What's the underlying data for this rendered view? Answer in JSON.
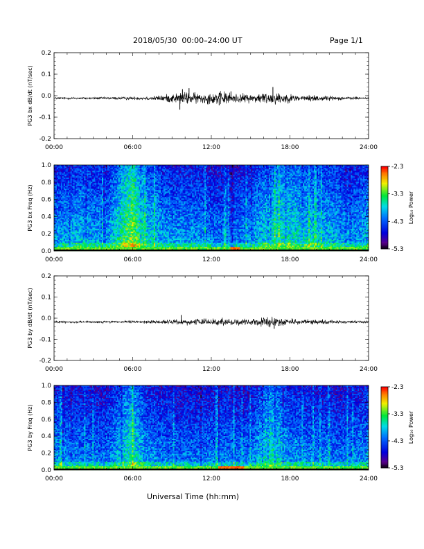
{
  "header": {
    "title": "2018/05/30  00:00–24:00 UT",
    "page": "Page 1/1"
  },
  "xlabel": "Universal Time (hh:mm)",
  "chart_data": [
    {
      "type": "line",
      "ylabel": "PG3 bx dB/dt (nT/sec)",
      "xlim": [
        0,
        24
      ],
      "ylim": [
        -0.2,
        0.2
      ],
      "xticks": [
        "00:00",
        "06:00",
        "12:00",
        "18:00",
        "24:00"
      ],
      "yticks": [
        "-0.2",
        "-0.1",
        "0.0",
        "0.1",
        "0.2"
      ],
      "baseline": -0.012,
      "activity": [
        {
          "hour": 0,
          "amplitude": 0.004
        },
        {
          "hour": 3,
          "amplitude": 0.004
        },
        {
          "hour": 5,
          "amplitude": 0.005
        },
        {
          "hour": 7,
          "amplitude": 0.006
        },
        {
          "hour": 8,
          "amplitude": 0.009
        },
        {
          "hour": 9,
          "amplitude": 0.016
        },
        {
          "hour": 10,
          "amplitude": 0.022
        },
        {
          "hour": 11,
          "amplitude": 0.018
        },
        {
          "hour": 12,
          "amplitude": 0.02
        },
        {
          "hour": 13,
          "amplitude": 0.024
        },
        {
          "hour": 14,
          "amplitude": 0.016
        },
        {
          "hour": 15,
          "amplitude": 0.015
        },
        {
          "hour": 16,
          "amplitude": 0.02
        },
        {
          "hour": 17,
          "amplitude": 0.022
        },
        {
          "hour": 18,
          "amplitude": 0.014
        },
        {
          "hour": 19,
          "amplitude": 0.01
        },
        {
          "hour": 20,
          "amplitude": 0.012
        },
        {
          "hour": 21,
          "amplitude": 0.008
        },
        {
          "hour": 22,
          "amplitude": 0.006
        },
        {
          "hour": 23,
          "amplitude": 0.005
        },
        {
          "hour": 24,
          "amplitude": 0.004
        }
      ],
      "spikes": [
        {
          "hour": 9.6,
          "value": -0.065
        },
        {
          "hour": 9.8,
          "value": 0.03
        },
        {
          "hour": 10.3,
          "value": 0.035
        },
        {
          "hour": 12.6,
          "value": -0.045
        },
        {
          "hour": 16.7,
          "value": 0.04
        },
        {
          "hour": 13.5,
          "value": 0.02
        }
      ]
    },
    {
      "type": "heatmap",
      "ylabel": "PG3 bx Freq (Hz)",
      "xlim": [
        0,
        24
      ],
      "ylim": [
        0,
        1
      ],
      "xticks": [
        "00:00",
        "06:00",
        "12:00",
        "18:00",
        "24:00"
      ],
      "yticks": [
        "0.0",
        "0.2",
        "0.4",
        "0.6",
        "0.8",
        "1.0"
      ],
      "colorbar": {
        "label": "Log₁₀ Power",
        "ticks": [
          "-2.3",
          "-3.3",
          "-4.3",
          "-5.3"
        ],
        "range": [
          -5.3,
          -2.3
        ]
      },
      "activity_hours": [
        {
          "hour": 0,
          "level": 0.45
        },
        {
          "hour": 2,
          "level": 0.5
        },
        {
          "hour": 4,
          "level": 0.45
        },
        {
          "hour": 6,
          "level": 0.75
        },
        {
          "hour": 7,
          "level": 0.55
        },
        {
          "hour": 9,
          "level": 0.45
        },
        {
          "hour": 11,
          "level": 0.45
        },
        {
          "hour": 13,
          "level": 0.4
        },
        {
          "hour": 15,
          "level": 0.45
        },
        {
          "hour": 17,
          "level": 0.6
        },
        {
          "hour": 19,
          "level": 0.55
        },
        {
          "hour": 21,
          "level": 0.5
        },
        {
          "hour": 23,
          "level": 0.45
        },
        {
          "hour": 24,
          "level": 0.5
        }
      ],
      "low_freq_peak_hours": [
        13.5,
        14.2
      ]
    },
    {
      "type": "line",
      "ylabel": "PG3 by dB/dt (nT/sec)",
      "xlim": [
        0,
        24
      ],
      "ylim": [
        -0.2,
        0.2
      ],
      "xticks": [
        "00:00",
        "06:00",
        "12:00",
        "18:00",
        "24:00"
      ],
      "yticks": [
        "-0.2",
        "-0.1",
        "0.0",
        "0.1",
        "0.2"
      ],
      "baseline": -0.018,
      "activity": [
        {
          "hour": 0,
          "amplitude": 0.004
        },
        {
          "hour": 3,
          "amplitude": 0.004
        },
        {
          "hour": 5,
          "amplitude": 0.004
        },
        {
          "hour": 7,
          "amplitude": 0.005
        },
        {
          "hour": 8,
          "amplitude": 0.006
        },
        {
          "hour": 9,
          "amplitude": 0.008
        },
        {
          "hour": 10,
          "amplitude": 0.011
        },
        {
          "hour": 11,
          "amplitude": 0.01
        },
        {
          "hour": 12,
          "amplitude": 0.011
        },
        {
          "hour": 13,
          "amplitude": 0.012
        },
        {
          "hour": 14,
          "amplitude": 0.012
        },
        {
          "hour": 15,
          "amplitude": 0.013
        },
        {
          "hour": 16,
          "amplitude": 0.016
        },
        {
          "hour": 17,
          "amplitude": 0.016
        },
        {
          "hour": 18,
          "amplitude": 0.012
        },
        {
          "hour": 19,
          "amplitude": 0.009
        },
        {
          "hour": 20,
          "amplitude": 0.008
        },
        {
          "hour": 21,
          "amplitude": 0.007
        },
        {
          "hour": 22,
          "amplitude": 0.005
        },
        {
          "hour": 23,
          "amplitude": 0.005
        },
        {
          "hour": 24,
          "amplitude": 0.004
        }
      ],
      "spikes": [
        {
          "hour": 9.7,
          "value": 0.015
        },
        {
          "hour": 16.8,
          "value": -0.05
        },
        {
          "hour": 16.4,
          "value": -0.04
        }
      ]
    },
    {
      "type": "heatmap",
      "ylabel": "PG3 by Freq (Hz)",
      "xlim": [
        0,
        24
      ],
      "ylim": [
        0,
        1
      ],
      "xticks": [
        "00:00",
        "06:00",
        "12:00",
        "18:00",
        "24:00"
      ],
      "yticks": [
        "0.0",
        "0.2",
        "0.4",
        "0.6",
        "0.8",
        "1.0"
      ],
      "colorbar": {
        "label": "Log₁₀ Power",
        "ticks": [
          "-2.3",
          "-3.3",
          "-4.3",
          "-5.3"
        ],
        "range": [
          -5.3,
          -2.3
        ]
      },
      "activity_hours": [
        {
          "hour": 0,
          "level": 0.45
        },
        {
          "hour": 2,
          "level": 0.42
        },
        {
          "hour": 4,
          "level": 0.4
        },
        {
          "hour": 6,
          "level": 0.62
        },
        {
          "hour": 7,
          "level": 0.45
        },
        {
          "hour": 9,
          "level": 0.4
        },
        {
          "hour": 11,
          "level": 0.4
        },
        {
          "hour": 13,
          "level": 0.42
        },
        {
          "hour": 15,
          "level": 0.4
        },
        {
          "hour": 16.5,
          "level": 0.6
        },
        {
          "hour": 18,
          "level": 0.45
        },
        {
          "hour": 20,
          "level": 0.42
        },
        {
          "hour": 22,
          "level": 0.4
        },
        {
          "hour": 24,
          "level": 0.45
        }
      ],
      "low_freq_peak_hours": [
        12.5,
        14.5
      ]
    }
  ]
}
